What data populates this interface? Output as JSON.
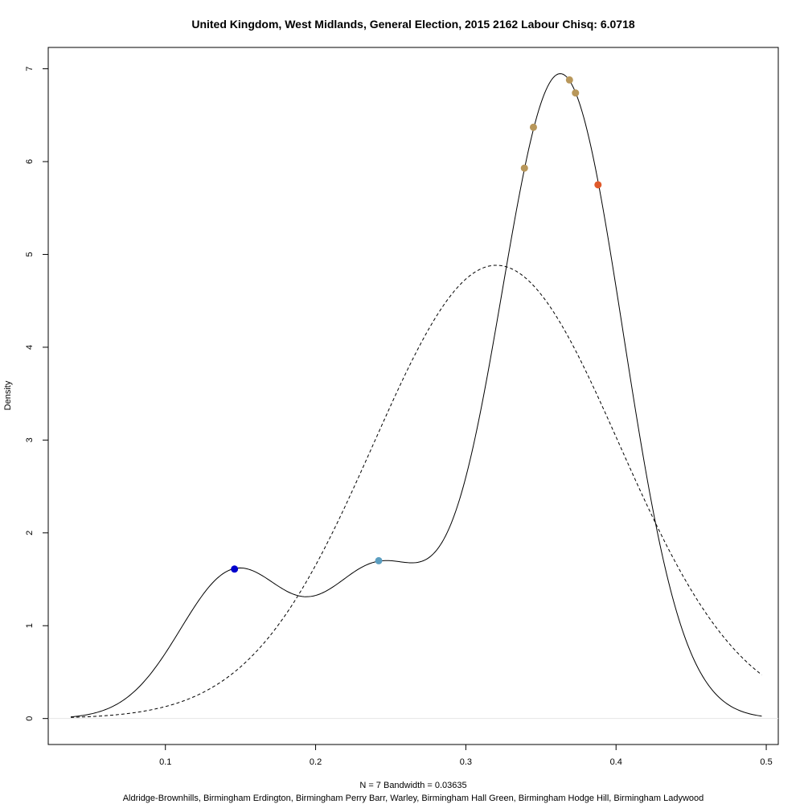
{
  "chart_data": {
    "type": "line",
    "title": "United Kingdom, West Midlands, General Election, 2015 2162 Labour Chisq: 6.0718",
    "xlabel": "N = 7   Bandwidth = 0.03635",
    "subtitle": "Aldridge-Brownhills, Birmingham Erdington, Birmingham Perry Barr, Warley, Birmingham Hall Green, Birmingham Hodge Hill, Birmingham Ladywood",
    "ylabel": "Density",
    "xlim": [
      0.022,
      0.508
    ],
    "ylim": [
      -0.28,
      7.23
    ],
    "x_ticks": [
      0.1,
      0.2,
      0.3,
      0.4,
      0.5
    ],
    "x_tick_labels": [
      "0.1",
      "0.2",
      "0.3",
      "0.4",
      "0.5"
    ],
    "y_ticks": [
      0,
      1,
      2,
      3,
      4,
      5,
      6,
      7
    ],
    "y_tick_labels": [
      "0",
      "1",
      "2",
      "3",
      "4",
      "5",
      "6",
      "7"
    ],
    "grid": false,
    "kde": {
      "bandwidth": 0.03635,
      "data": [
        0.146,
        0.242,
        0.339,
        0.345,
        0.369,
        0.373,
        0.388
      ],
      "x_range": [
        0.037,
        0.497
      ]
    },
    "normal": {
      "mean": 0.3203,
      "sd": 0.0817,
      "x_range": [
        0.037,
        0.497
      ]
    },
    "points": [
      {
        "x": 0.146,
        "y": 1.61,
        "color": "#0000CD"
      },
      {
        "x": 0.242,
        "y": 1.7,
        "color": "#5B9EC0"
      },
      {
        "x": 0.339,
        "y": 5.93,
        "color": "#B8975A"
      },
      {
        "x": 0.345,
        "y": 6.37,
        "color": "#B8975A"
      },
      {
        "x": 0.369,
        "y": 6.88,
        "color": "#B8975A"
      },
      {
        "x": 0.373,
        "y": 6.74,
        "color": "#B8975A"
      },
      {
        "x": 0.388,
        "y": 5.75,
        "color": "#E05A2B"
      }
    ]
  }
}
